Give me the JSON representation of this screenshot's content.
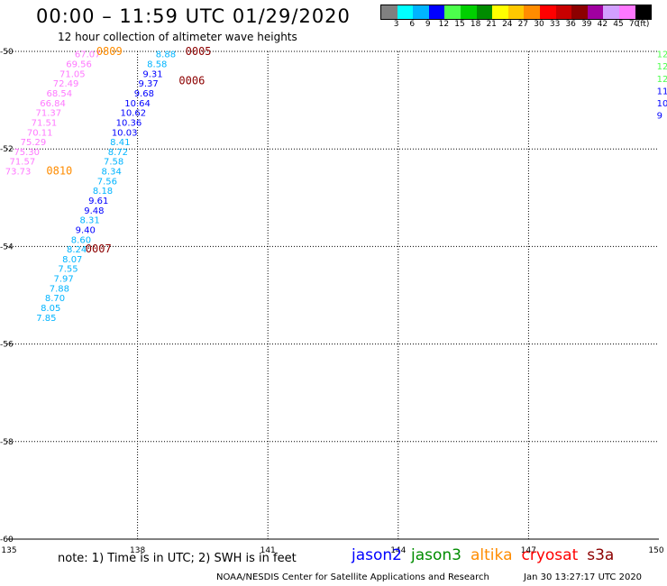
{
  "title": "00:00 – 11:59 UTC 01/29/2020",
  "subtitle": "12 hour collection of altimeter wave heights",
  "legend": {
    "colors": [
      "#808080",
      "#00ffff",
      "#00b4ff",
      "#0000ff",
      "#4cff4c",
      "#00d000",
      "#008c00",
      "#ffff00",
      "#ffc800",
      "#ff8c00",
      "#ff0000",
      "#c80000",
      "#8c0000",
      "#a000a0",
      "#d2a0ff",
      "#ff78ff",
      "#000000"
    ],
    "labels": [
      "3",
      "6",
      "9",
      "12",
      "15",
      "18",
      "21",
      "24",
      "27",
      "30",
      "33",
      "36",
      "39",
      "42",
      "45",
      "70",
      "(ft)"
    ],
    "unit": "(ft)"
  },
  "chart_data": {
    "type": "scatter",
    "xlim": [
      135,
      150
    ],
    "ylim": [
      -60,
      -50
    ],
    "x_ticks": [
      "135",
      "138",
      "141",
      "144",
      "147",
      "150"
    ],
    "y_ticks": [
      "-50",
      "-52",
      "-54",
      "-56",
      "-58",
      "-60"
    ],
    "tracks": [
      {
        "satellite": "jason2",
        "points": [
          {
            "lon": 136.85,
            "lat": -50.05,
            "label": "67.07",
            "color": "#ff78ff"
          },
          {
            "lon": 136.65,
            "lat": -50.25,
            "label": "69.56",
            "color": "#ff78ff"
          },
          {
            "lon": 136.5,
            "lat": -50.45,
            "label": "71.05",
            "color": "#ff78ff"
          },
          {
            "lon": 136.35,
            "lat": -50.65,
            "label": "72.49",
            "color": "#ff78ff"
          },
          {
            "lon": 136.2,
            "lat": -50.85,
            "label": "68.54",
            "color": "#ff78ff"
          },
          {
            "lon": 136.05,
            "lat": -51.05,
            "label": "66.84",
            "color": "#ff78ff"
          },
          {
            "lon": 135.95,
            "lat": -51.25,
            "label": "71.37",
            "color": "#ff78ff"
          },
          {
            "lon": 135.85,
            "lat": -51.45,
            "label": "71.51",
            "color": "#ff78ff"
          },
          {
            "lon": 135.75,
            "lat": -51.65,
            "label": "70.11",
            "color": "#ff78ff"
          },
          {
            "lon": 135.6,
            "lat": -51.85,
            "label": "75.29",
            "color": "#ff78ff"
          },
          {
            "lon": 135.45,
            "lat": -52.05,
            "label": "75.30",
            "color": "#ff78ff"
          },
          {
            "lon": 135.35,
            "lat": -52.25,
            "label": "71.57",
            "color": "#ff78ff"
          },
          {
            "lon": 135.25,
            "lat": -52.45,
            "label": "73.73",
            "color": "#ff78ff"
          }
        ]
      },
      {
        "satellite": "jason3",
        "points": [
          {
            "lon": 138.65,
            "lat": -50.05,
            "label": "8.88",
            "color": "#00b4ff"
          },
          {
            "lon": 138.45,
            "lat": -50.25,
            "label": "8.58",
            "color": "#00b4ff"
          },
          {
            "lon": 138.35,
            "lat": -50.45,
            "label": "9.31",
            "color": "#0000ff"
          },
          {
            "lon": 138.25,
            "lat": -50.65,
            "label": "9.37",
            "color": "#0000ff"
          },
          {
            "lon": 138.15,
            "lat": -50.85,
            "label": "9.68",
            "color": "#0000ff"
          },
          {
            "lon": 138.0,
            "lat": -51.05,
            "label": "10.64",
            "color": "#0000ff"
          },
          {
            "lon": 137.9,
            "lat": -51.25,
            "label": "10.62",
            "color": "#0000ff"
          },
          {
            "lon": 137.8,
            "lat": -51.45,
            "label": "10.36",
            "color": "#0000ff"
          },
          {
            "lon": 137.7,
            "lat": -51.65,
            "label": "10.03",
            "color": "#0000ff"
          },
          {
            "lon": 137.6,
            "lat": -51.85,
            "label": "8.41",
            "color": "#00b4ff"
          },
          {
            "lon": 137.55,
            "lat": -52.05,
            "label": "8.72",
            "color": "#00b4ff"
          },
          {
            "lon": 137.45,
            "lat": -52.25,
            "label": "7.58",
            "color": "#00b4ff"
          },
          {
            "lon": 137.4,
            "lat": -52.45,
            "label": "8.34",
            "color": "#00b4ff"
          },
          {
            "lon": 137.3,
            "lat": -52.65,
            "label": "7.56",
            "color": "#00b4ff"
          },
          {
            "lon": 137.2,
            "lat": -52.85,
            "label": "8.18",
            "color": "#00b4ff"
          },
          {
            "lon": 137.1,
            "lat": -53.05,
            "label": "9.61",
            "color": "#0000ff"
          },
          {
            "lon": 137.0,
            "lat": -53.25,
            "label": "9.48",
            "color": "#0000ff"
          },
          {
            "lon": 136.9,
            "lat": -53.45,
            "label": "8.31",
            "color": "#00b4ff"
          },
          {
            "lon": 136.8,
            "lat": -53.65,
            "label": "9.40",
            "color": "#0000ff"
          },
          {
            "lon": 136.7,
            "lat": -53.85,
            "label": "8.60",
            "color": "#00b4ff"
          },
          {
            "lon": 136.6,
            "lat": -54.05,
            "label": "8.24",
            "color": "#00b4ff"
          },
          {
            "lon": 136.5,
            "lat": -54.25,
            "label": "8.07",
            "color": "#00b4ff"
          },
          {
            "lon": 136.4,
            "lat": -54.45,
            "label": "7.55",
            "color": "#00b4ff"
          },
          {
            "lon": 136.3,
            "lat": -54.65,
            "label": "7.97",
            "color": "#00b4ff"
          },
          {
            "lon": 136.2,
            "lat": -54.85,
            "label": "7.88",
            "color": "#00b4ff"
          },
          {
            "lon": 136.1,
            "lat": -55.05,
            "label": "8.70",
            "color": "#00b4ff"
          },
          {
            "lon": 136.0,
            "lat": -55.25,
            "label": "8.05",
            "color": "#00b4ff"
          },
          {
            "lon": 135.9,
            "lat": -55.45,
            "label": "7.85",
            "color": "#00b4ff"
          }
        ]
      },
      {
        "satellite": "offscreen-right",
        "points": [
          {
            "lon": 149.95,
            "lat": -50.05,
            "label": "12.",
            "color": "#4cff4c"
          },
          {
            "lon": 149.95,
            "lat": -50.3,
            "label": "12",
            "color": "#4cff4c"
          },
          {
            "lon": 149.95,
            "lat": -50.55,
            "label": "12",
            "color": "#4cff4c"
          },
          {
            "lon": 149.95,
            "lat": -50.8,
            "label": "11",
            "color": "#0000ff"
          },
          {
            "lon": 149.95,
            "lat": -51.05,
            "label": "10",
            "color": "#0000ff"
          },
          {
            "lon": 149.95,
            "lat": -51.3,
            "label": "9",
            "color": "#0000ff"
          }
        ]
      }
    ],
    "time_labels": [
      {
        "lon": 137.35,
        "lat": -50.0,
        "label": "0809",
        "color": "#ff8c00"
      },
      {
        "lon": 139.4,
        "lat": -50.0,
        "label": "0005",
        "color": "#8c0000"
      },
      {
        "lon": 139.25,
        "lat": -50.6,
        "label": "0006",
        "color": "#8c0000"
      },
      {
        "lon": 136.2,
        "lat": -52.45,
        "label": "0810",
        "color": "#ff8c00"
      },
      {
        "lon": 137.1,
        "lat": -54.05,
        "label": "0007",
        "color": "#8c0000"
      }
    ]
  },
  "satellites": [
    {
      "name": "jason2",
      "color": "#0000ff"
    },
    {
      "name": "jason3",
      "color": "#008c00"
    },
    {
      "name": "altika",
      "color": "#ff8c00"
    },
    {
      "name": "cryosat",
      "color": "#ff0000"
    },
    {
      "name": "s3a",
      "color": "#8c0000"
    }
  ],
  "note": "note: 1) Time is in UTC; 2) SWH is in feet",
  "credit": "NOAA/NESDIS Center for Satellite Applications and Research",
  "timestamp": "Jan 30 13:27:17 UTC 2020"
}
